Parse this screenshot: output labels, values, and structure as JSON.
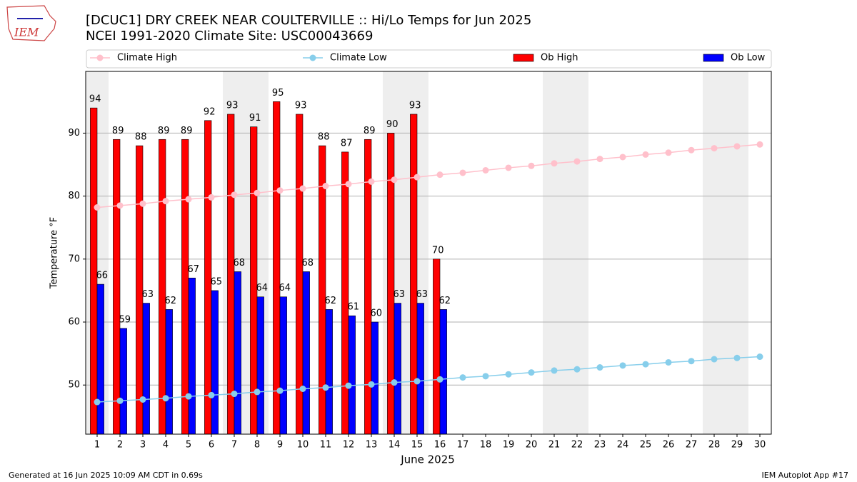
{
  "chart_data": {
    "type": "bar",
    "title": "[DCUC1] DRY CREEK NEAR COULTERVILLE :: Hi/Lo Temps for Jun 2025",
    "subtitle": "NCEI 1991-2020 Climate Site: USC00043669",
    "x_label": "June 2025",
    "y_label": "Temperature °F",
    "logo_text": "IEM",
    "footer_left": "Generated at 16 Jun 2025 10:09 AM CDT in 0.69s",
    "footer_right": "IEM Autoplot App #17",
    "x": [
      1,
      2,
      3,
      4,
      5,
      6,
      7,
      8,
      9,
      10,
      11,
      12,
      13,
      14,
      15,
      16,
      17,
      18,
      19,
      20,
      21,
      22,
      23,
      24,
      25,
      26,
      27,
      28,
      29,
      30
    ],
    "xlim": [
      0.5,
      30.5
    ],
    "xticks": [
      1,
      2,
      3,
      4,
      5,
      6,
      7,
      8,
      9,
      10,
      11,
      12,
      13,
      14,
      15,
      16,
      17,
      18,
      19,
      20,
      21,
      22,
      23,
      24,
      25,
      26,
      27,
      28,
      29,
      30
    ],
    "ylim": [
      42.2,
      99.8
    ],
    "yticks": [
      50,
      60,
      70,
      80,
      90
    ],
    "grid": true,
    "shaded_days": [
      1,
      7,
      8,
      14,
      15,
      21,
      22,
      28,
      29
    ],
    "series": [
      {
        "name": "Climate High",
        "type": "line",
        "color": "#ffc0cb",
        "values": [
          78.2,
          78.5,
          78.8,
          79.2,
          79.5,
          79.8,
          80.2,
          80.5,
          80.9,
          81.2,
          81.6,
          81.9,
          82.3,
          82.6,
          83.0,
          83.4,
          83.7,
          84.1,
          84.5,
          84.8,
          85.2,
          85.5,
          85.9,
          86.2,
          86.6,
          86.9,
          87.3,
          87.6,
          87.9,
          88.2
        ]
      },
      {
        "name": "Climate Low",
        "type": "line",
        "color": "#87ceeb",
        "values": [
          47.3,
          47.5,
          47.7,
          47.9,
          48.2,
          48.4,
          48.6,
          48.9,
          49.1,
          49.4,
          49.6,
          49.9,
          50.1,
          50.4,
          50.6,
          50.9,
          51.2,
          51.4,
          51.7,
          52.0,
          52.3,
          52.5,
          52.8,
          53.1,
          53.3,
          53.6,
          53.8,
          54.1,
          54.3,
          54.5
        ]
      },
      {
        "name": "Ob High",
        "type": "bar",
        "color": "#ff0000",
        "values": [
          94,
          89,
          88,
          89,
          89,
          92,
          93,
          91,
          95,
          93,
          88,
          87,
          89,
          90,
          93,
          70,
          null,
          null,
          null,
          null,
          null,
          null,
          null,
          null,
          null,
          null,
          null,
          null,
          null,
          null
        ]
      },
      {
        "name": "Ob Low",
        "type": "bar",
        "color": "#0000ff",
        "values": [
          66,
          59,
          63,
          62,
          67,
          65,
          68,
          64,
          64,
          68,
          62,
          61,
          60,
          63,
          63,
          62,
          null,
          null,
          null,
          null,
          null,
          null,
          null,
          null,
          null,
          null,
          null,
          null,
          null,
          null
        ]
      }
    ]
  }
}
